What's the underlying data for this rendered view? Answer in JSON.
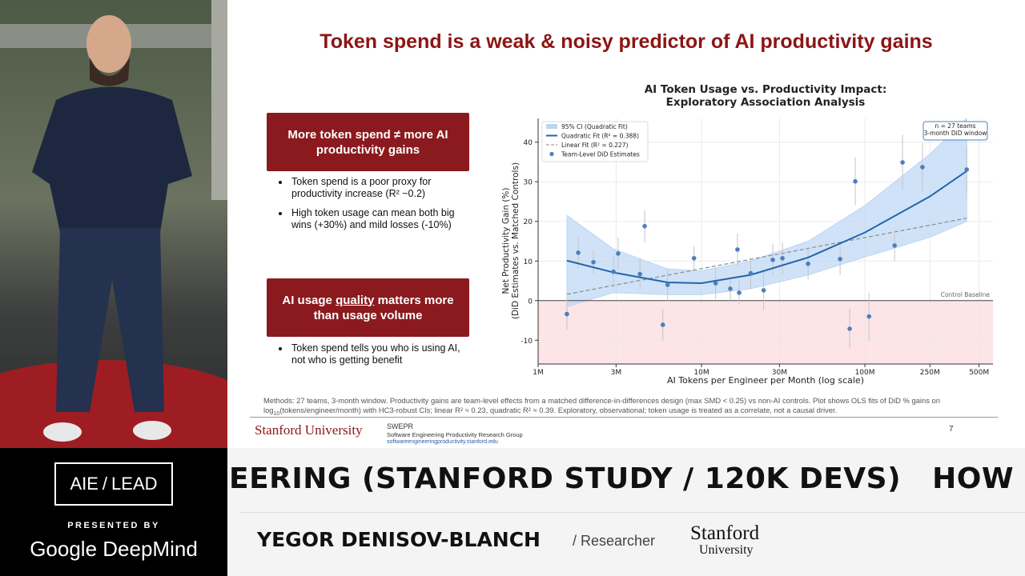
{
  "slide": {
    "title": "Token spend is a weak & noisy predictor of AI productivity gains",
    "box1": "More token spend ≠ more AI productivity gains",
    "bullets1": [
      "Token spend is a poor proxy for productivity increase (R² ~0.2)",
      "High token usage can mean both big wins (+30%) and mild losses (-10%)"
    ],
    "box2": [
      "AI usage ",
      "quality",
      " matters more than usage volume"
    ],
    "bullets2": [
      "Token spend tells you who is using AI, not who is getting benefit"
    ],
    "methods": [
      "Methods: 27 teams, 3-month window. Productivity gains are team-level effects from a matched difference-in-differences design (max SMD < 0.25) vs non-AI controls. Plot shows OLS fits of DiD % gains on log",
      "10",
      "(tokens/engineer/month) with HC3-robust CIs; linear R² ≈ 0.23, quadratic R² ≈ 0.39. Exploratory, observational; token usage is treated as a correlate, not a causal driver."
    ],
    "footer": {
      "university": "Stanford University",
      "group": "SWEPR",
      "group_name": "Software Engineering Productivity Research Group",
      "url": "softwareengineeringproductivity.stanford.edu",
      "page": "7"
    }
  },
  "chart_data": {
    "type": "scatter",
    "title": [
      "AI Token Usage vs. Productivity Impact:",
      "Exploratory Association Analysis"
    ],
    "x_label": "AI Tokens per Engineer per Month (log scale)",
    "y_label": [
      "Net Productivity Gain (%)",
      "(DiD Estimates vs. Matched Controls)"
    ],
    "x_log": true,
    "grid": true,
    "legend": "upper left",
    "xlim": [
      1000000,
      608000000
    ],
    "ylim": [
      -16,
      46
    ],
    "xticks": [
      {
        "value": 1000000,
        "label": "1M"
      },
      {
        "value": 3000000,
        "label": "3M"
      },
      {
        "value": 10000000,
        "label": "10M"
      },
      {
        "value": 30000000,
        "label": "30M"
      },
      {
        "value": 100000000,
        "label": "100M"
      },
      {
        "value": 250000000,
        "label": "250M"
      },
      {
        "value": 500000000,
        "label": "500M"
      }
    ],
    "yticks": [
      -10,
      0,
      10,
      20,
      30,
      40
    ],
    "baseline_label": "Control Baseline",
    "negative_color": "#fde4e7",
    "annotation": [
      "n = 27 teams",
      "3-month DiD window"
    ],
    "ci_band": {
      "name": "95% CI (Quadratic Fit)",
      "color": "#bcd6f3",
      "x": [
        1500000,
        2900000,
        6200000,
        10000000,
        20000000,
        45000000,
        100000000,
        250000000,
        420000000
      ],
      "upper": [
        21.5,
        13,
        8,
        7.5,
        10,
        15,
        24,
        37,
        46
      ],
      "lower": [
        -1.5,
        2,
        1.5,
        1.5,
        3,
        6.5,
        11,
        16,
        20
      ]
    },
    "quadratic_fit": {
      "name": "Quadratic Fit (R² = 0.388)",
      "color": "#2166ac",
      "x": [
        1500000,
        2900000,
        6200000,
        10000000,
        20000000,
        45000000,
        100000000,
        250000000,
        420000000
      ],
      "values": [
        10.1,
        7.1,
        4.6,
        4.4,
        6.5,
        10.9,
        17.2,
        26.3,
        32.7
      ]
    },
    "linear_fit": {
      "name": "Linear Fit (R² = 0.227)",
      "color": "#8a8a8a",
      "x": [
        1500000,
        420000000
      ],
      "values": [
        1.6,
        20.8
      ]
    },
    "scatter": {
      "name": "Team-Level DiD Estimates",
      "color": "#4a80bd",
      "x": [
        1500000,
        1760000,
        2180000,
        2890000,
        3090000,
        4200000,
        4490000,
        5800000,
        6200000,
        9000000,
        12200000,
        15000000,
        16600000,
        17000000,
        20000000,
        24000000,
        27300000,
        31300000,
        44900000,
        70500000,
        80700000,
        87300000,
        106000000,
        152000000,
        170000000,
        225000000,
        420000000
      ],
      "values": [
        -3.4,
        12.1,
        9.7,
        7.3,
        11.9,
        6.7,
        18.8,
        -6.1,
        4.0,
        10.7,
        4.4,
        3.0,
        12.9,
        2.0,
        6.9,
        2.6,
        10.3,
        10.7,
        9.3,
        10.5,
        -7.1,
        30.1,
        -4.0,
        13.9,
        34.9,
        33.7,
        33.1
      ],
      "errors": [
        4,
        4,
        3,
        4,
        4,
        4,
        4,
        4,
        4,
        3,
        4,
        3,
        4,
        3,
        4,
        5,
        4,
        4,
        4,
        4,
        5,
        6,
        6,
        4,
        7,
        6,
        6
      ]
    }
  },
  "banner": {
    "logo": [
      "AIE",
      "/",
      "LEAD"
    ],
    "presented_by": "PRESENTED BY",
    "sponsor": "Google DeepMind",
    "ticker": "EERING (STANFORD STUDY / 120K DEVS)   HOW",
    "speaker": "YEGOR DENISOV-BLANCH",
    "role": "/ Researcher",
    "org": [
      "Stanford",
      "University"
    ]
  }
}
